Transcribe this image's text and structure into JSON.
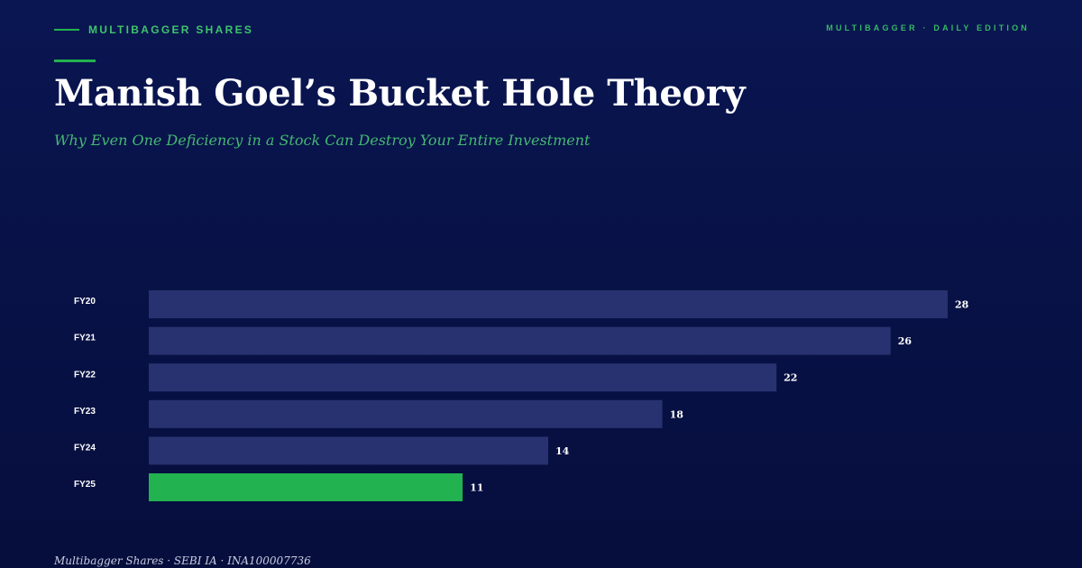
{
  "header": {
    "brand": "MULTIBAGGER SHARES",
    "edition": "MULTIBAGGER · DAILY EDITION",
    "title": "Manish Goel’s Bucket Hole Theory",
    "subtitle": "Why Even One Deficiency in a Stock Can Destroy Your Entire Investment"
  },
  "colors": {
    "background": "#081247",
    "bar": "#283270",
    "highlight_bar": "#22b24f",
    "accent": "#23b24f"
  },
  "chart_data": {
    "type": "bar",
    "orientation": "horizontal",
    "categories": [
      "FY20",
      "FY21",
      "FY22",
      "FY23",
      "FY24",
      "FY25"
    ],
    "values": [
      28,
      26,
      22,
      18,
      14,
      11
    ],
    "highlight": "FY25",
    "xlim": [
      0,
      28
    ],
    "grid": false,
    "data_labels": true
  },
  "footer": {
    "text": "Multibagger Shares · SEBI IA · INA100007736"
  }
}
